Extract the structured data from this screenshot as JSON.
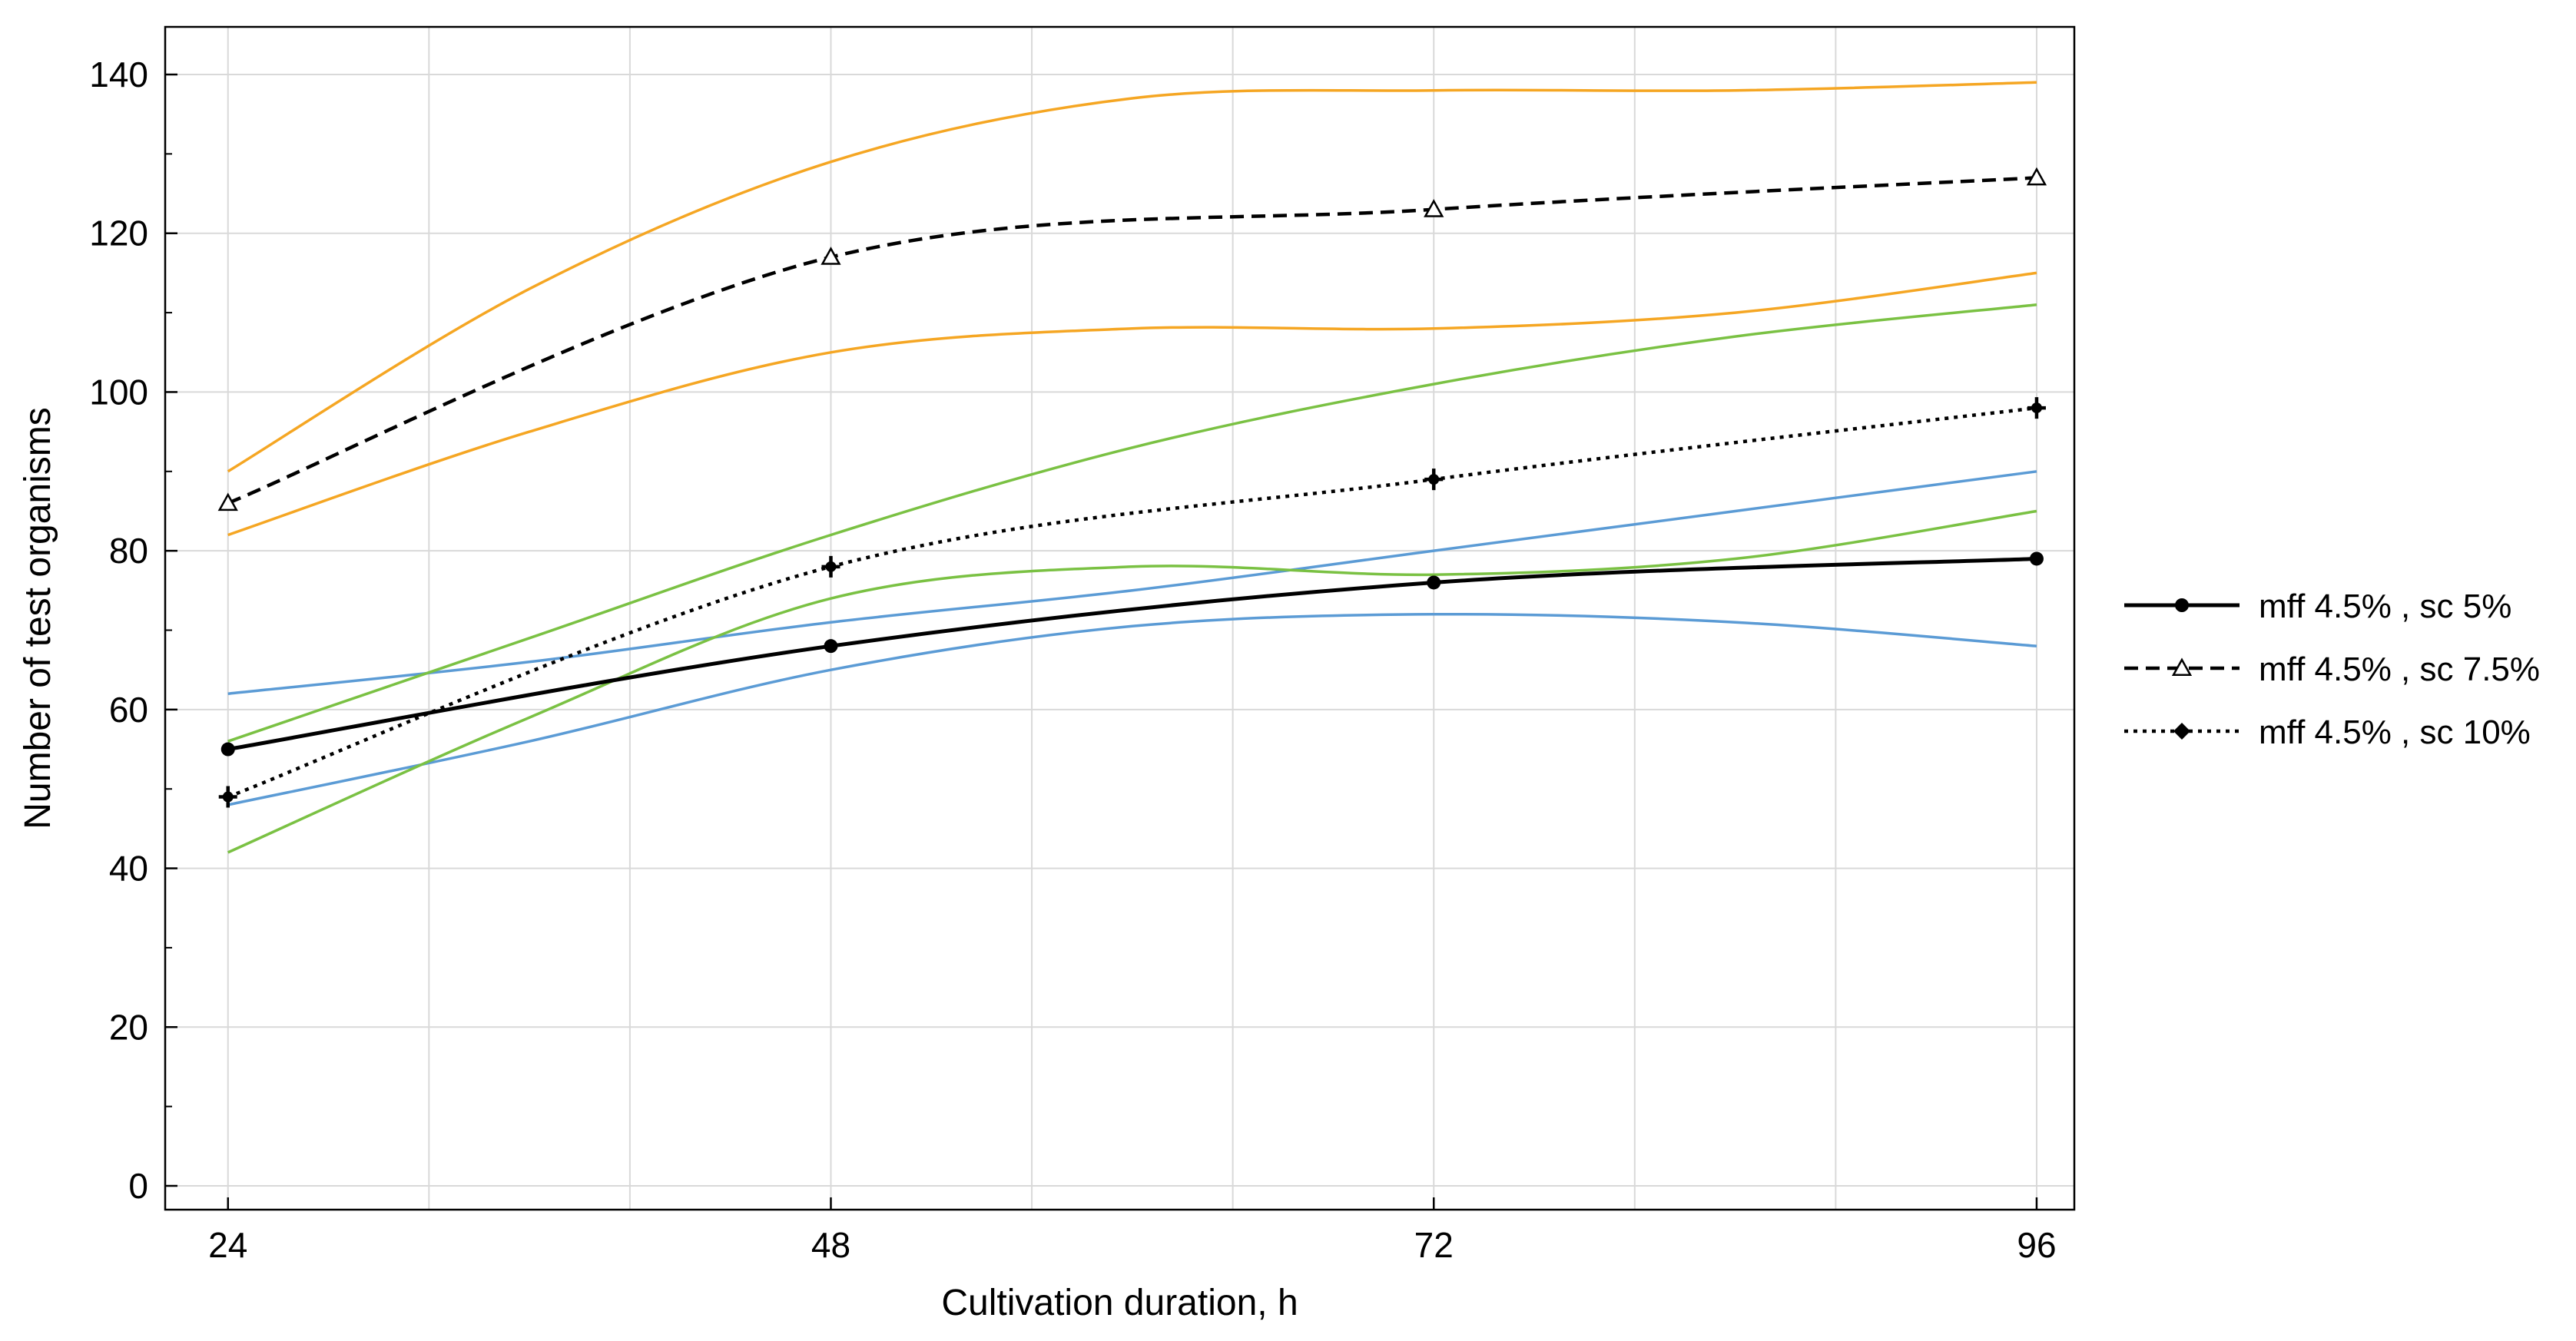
{
  "chart_data": {
    "type": "line",
    "title": "",
    "xlabel": "Cultivation duration, h",
    "ylabel": "Number of test organisms",
    "x": [
      24,
      48,
      72,
      96
    ],
    "xlim": [
      21.5,
      97.5
    ],
    "ylim": [
      -3,
      146
    ],
    "xticks": [
      24,
      48,
      72,
      96
    ],
    "yticks": [
      0,
      20,
      40,
      60,
      80,
      100,
      120,
      140
    ],
    "grid": true,
    "legend_position": "right",
    "series": [
      {
        "name": "mff 4.5% , sc 5%",
        "values": [
          55,
          68,
          76,
          79
        ],
        "color": "#000000",
        "dash": "solid",
        "marker": "circle"
      },
      {
        "name": "mff 4.5% , sc 7.5%",
        "values": [
          86,
          117,
          123,
          127
        ],
        "color": "#000000",
        "dash": "dashed",
        "marker": "triangle"
      },
      {
        "name": "mff 4.5% , sc 10%",
        "values": [
          49,
          78,
          89,
          98
        ],
        "color": "#000000",
        "dash": "dotted",
        "marker": "cross"
      }
    ],
    "confidence_bands": [
      {
        "for": "mff 4.5% , sc 5%",
        "color": "#5b9bd5",
        "upper": [
          [
            24,
            62
          ],
          [
            36,
            66
          ],
          [
            48,
            71
          ],
          [
            60,
            75
          ],
          [
            72,
            80
          ],
          [
            84,
            85
          ],
          [
            96,
            90
          ]
        ],
        "lower": [
          [
            24,
            48
          ],
          [
            36,
            56
          ],
          [
            48,
            65
          ],
          [
            60,
            70.5
          ],
          [
            72,
            72
          ],
          [
            84,
            71
          ],
          [
            96,
            68
          ]
        ]
      },
      {
        "for": "mff 4.5% , sc 7.5%",
        "color": "#f5a623",
        "upper": [
          [
            24,
            90
          ],
          [
            36,
            113
          ],
          [
            48,
            129
          ],
          [
            60,
            137
          ],
          [
            72,
            138
          ],
          [
            84,
            138
          ],
          [
            96,
            139
          ]
        ],
        "lower": [
          [
            24,
            82
          ],
          [
            36,
            95
          ],
          [
            48,
            105
          ],
          [
            60,
            108
          ],
          [
            72,
            108
          ],
          [
            84,
            110
          ],
          [
            96,
            115
          ]
        ]
      },
      {
        "for": "mff 4.5% , sc 10%",
        "color": "#7ac143",
        "upper": [
          [
            24,
            56
          ],
          [
            36,
            69
          ],
          [
            48,
            82
          ],
          [
            60,
            93
          ],
          [
            72,
            101
          ],
          [
            84,
            107
          ],
          [
            96,
            111
          ]
        ],
        "lower": [
          [
            24,
            42
          ],
          [
            36,
            59
          ],
          [
            48,
            74
          ],
          [
            60,
            78
          ],
          [
            72,
            77
          ],
          [
            84,
            79
          ],
          [
            96,
            85
          ]
        ]
      }
    ]
  }
}
